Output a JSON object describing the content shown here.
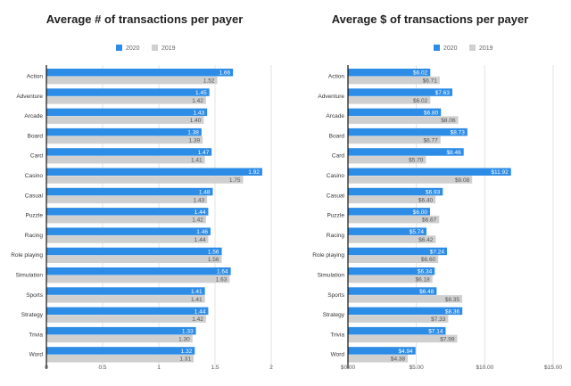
{
  "colors": {
    "series_2020": "#2d8ce6",
    "series_2019": "#d0d0d0",
    "grid": "#dcdcdc",
    "axis": "#111111"
  },
  "chart_data": [
    {
      "type": "bar",
      "orientation": "horizontal",
      "title": "Average # of transactions per payer",
      "categories": [
        "Action",
        "Adventure",
        "Arcade",
        "Board",
        "Card",
        "Casino",
        "Casual",
        "Puzzle",
        "Racing",
        "Role playing",
        "Simulation",
        "Sports",
        "Strategy",
        "Trivia",
        "Word"
      ],
      "series": [
        {
          "name": "2020",
          "values": [
            1.66,
            1.45,
            1.43,
            1.38,
            1.47,
            1.92,
            1.48,
            1.44,
            1.46,
            1.56,
            1.64,
            1.41,
            1.44,
            1.33,
            1.32
          ],
          "labels": [
            "1.66",
            "1.45",
            "1.43",
            "1.38",
            "1.47",
            "1.92",
            "1.48",
            "1.44",
            "1.46",
            "1.56",
            "1.64",
            "1.41",
            "1.44",
            "1.33",
            "1.32"
          ]
        },
        {
          "name": "2019",
          "values": [
            1.52,
            1.42,
            1.4,
            1.39,
            1.41,
            1.75,
            1.43,
            1.42,
            1.44,
            1.56,
            1.63,
            1.41,
            1.42,
            1.3,
            1.31
          ],
          "labels": [
            "1.52",
            "1.42",
            "1.40",
            "1.39",
            "1.41",
            "1.75",
            "1.43",
            "1.42",
            "1.44",
            "1.56",
            "1.63",
            "1.41",
            "1.42",
            "1.30",
            "1.31"
          ]
        }
      ],
      "xlim": [
        0,
        2
      ],
      "xticks": [
        0,
        0.5,
        1,
        1.5,
        2
      ],
      "xtick_labels": [
        "0",
        "0.5",
        "1",
        "1.5",
        "2"
      ],
      "legend": "top-center",
      "grid": true
    },
    {
      "type": "bar",
      "orientation": "horizontal",
      "title": "Average $ of transactions per payer",
      "categories": [
        "Action",
        "Adventure",
        "Arcade",
        "Board",
        "Card",
        "Casino",
        "Casual",
        "Puzzle",
        "Racing",
        "Role playing",
        "Simulation",
        "Sports",
        "Strategy",
        "Trivia",
        "Word"
      ],
      "series": [
        {
          "name": "2020",
          "values": [
            6.02,
            7.63,
            6.8,
            8.73,
            8.46,
            11.92,
            6.93,
            6.0,
            5.74,
            7.24,
            6.34,
            6.48,
            8.36,
            7.14,
            4.94
          ],
          "labels": [
            "$6.02",
            "$7.63",
            "$6.80",
            "$8.73",
            "$8.46",
            "$11.92",
            "$6.93",
            "$6.00",
            "$5.74",
            "$7.24",
            "$6.34",
            "$6.48",
            "$8.36",
            "$7.14",
            "$4.94"
          ]
        },
        {
          "name": "2019",
          "values": [
            6.71,
            6.02,
            8.06,
            6.77,
            5.7,
            9.08,
            6.4,
            6.67,
            6.42,
            6.6,
            6.18,
            8.35,
            7.33,
            7.99,
            4.38
          ],
          "labels": [
            "$6.71",
            "$6.02",
            "$8.06",
            "$6.77",
            "$5.70",
            "$9.08",
            "$6.40",
            "$6.67",
            "$6.42",
            "$6.60",
            "$6.18",
            "$8.35",
            "$7.33",
            "$7.99",
            "$4.38"
          ]
        }
      ],
      "xlim": [
        0,
        15
      ],
      "xticks": [
        0,
        5,
        10,
        15
      ],
      "xtick_labels": [
        "$0.00",
        "$5.00",
        "$10.00",
        "$15.00"
      ],
      "legend": "top-center",
      "grid": true
    }
  ]
}
